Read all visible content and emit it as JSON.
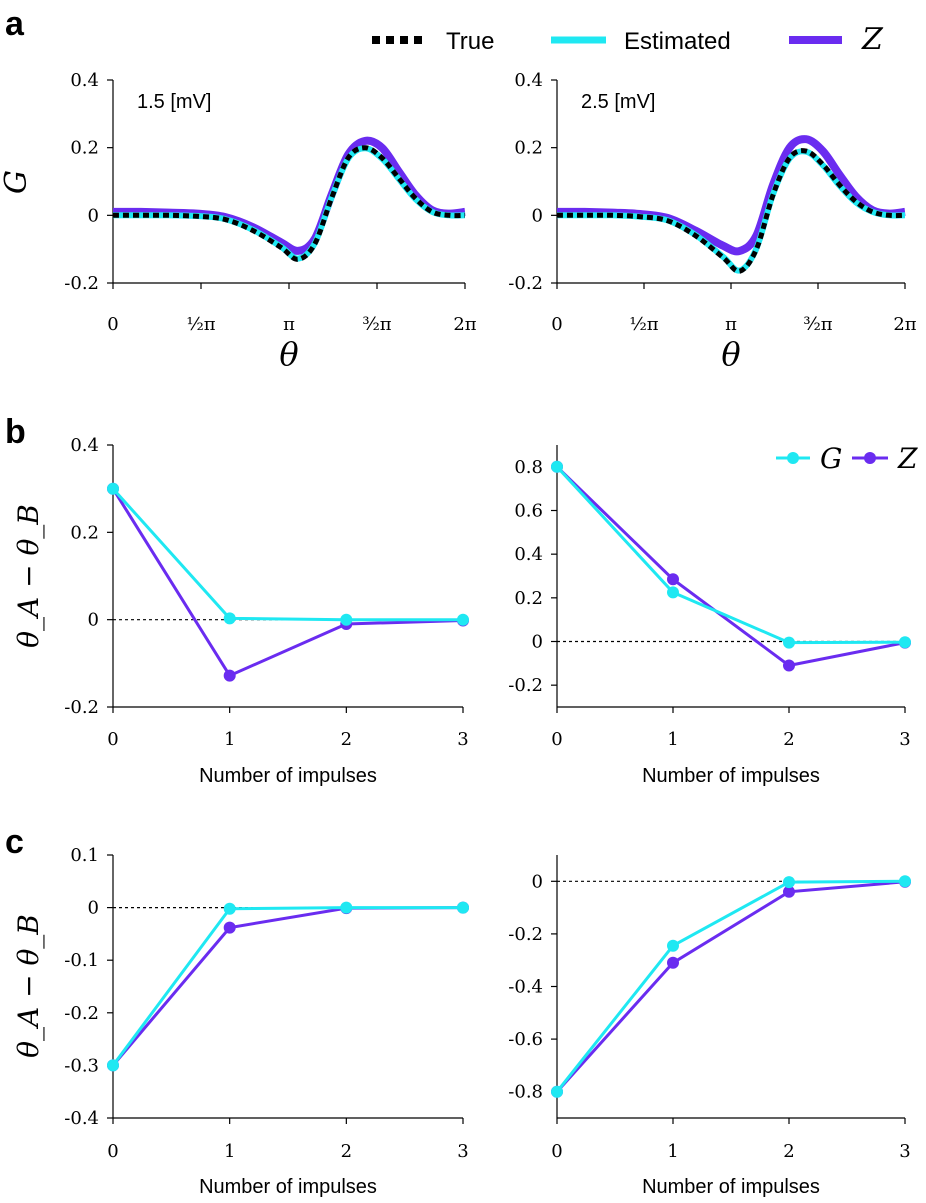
{
  "colors": {
    "true_line": "#000000",
    "g_color": "#1fe8f2",
    "z_color": "#6a2cf0",
    "axis": "#000000"
  },
  "panels": [
    {
      "label": "a"
    },
    {
      "label": "b"
    },
    {
      "label": "c"
    }
  ],
  "legend_a": [
    {
      "label": "True",
      "color": "#000000",
      "style": "dotted"
    },
    {
      "label": "Estimated",
      "color": "#1fe8f2",
      "style": "solid"
    },
    {
      "label": "Z",
      "color": "#6a2cf0",
      "style": "solid-thick"
    }
  ],
  "legend_b": [
    {
      "label": "G",
      "color": "#1fe8f2"
    },
    {
      "label": "Z",
      "color": "#6a2cf0"
    }
  ],
  "chart_data": [
    {
      "type": "line",
      "panel": "a",
      "annotation": "1.5 [mV]",
      "xlabel": "θ",
      "ylabel": "G",
      "xlim": [
        0,
        6.2832
      ],
      "ylim": [
        -0.2,
        0.4
      ],
      "yticks": [
        -0.2,
        0,
        0.2,
        0.4
      ],
      "ytick_labels": [
        "-0.2",
        "0",
        "0.2",
        "0.4"
      ],
      "xtick_values": [
        0,
        1.5708,
        3.1416,
        4.7124,
        6.2832
      ],
      "xtick_labels": [
        "0",
        "½π",
        "π",
        "³⁄₂π",
        "2π"
      ],
      "x": [
        0,
        0.5,
        1.0,
        1.5,
        2.0,
        2.5,
        3.0,
        3.3,
        3.6,
        3.9,
        4.2,
        4.5,
        4.8,
        5.1,
        5.4,
        5.7,
        6.0,
        6.2832
      ],
      "series": [
        {
          "name": "True",
          "values": [
            0,
            0,
            0,
            -0.003,
            -0.012,
            -0.045,
            -0.095,
            -0.13,
            -0.085,
            0.05,
            0.17,
            0.2,
            0.17,
            0.11,
            0.05,
            0.01,
            0,
            0
          ]
        },
        {
          "name": "Estimated",
          "values": [
            0,
            0,
            0,
            -0.002,
            -0.011,
            -0.043,
            -0.093,
            -0.128,
            -0.083,
            0.052,
            0.168,
            0.198,
            0.168,
            0.108,
            0.048,
            0.01,
            0,
            0
          ]
        },
        {
          "name": "Z",
          "values": [
            0.01,
            0.01,
            0.008,
            0.005,
            -0.005,
            -0.035,
            -0.08,
            -0.105,
            -0.07,
            0.06,
            0.18,
            0.22,
            0.2,
            0.13,
            0.06,
            0.015,
            0.005,
            0.01
          ]
        }
      ]
    },
    {
      "type": "line",
      "panel": "a",
      "annotation": "2.5 [mV]",
      "xlabel": "θ",
      "ylabel": "",
      "xlim": [
        0,
        6.2832
      ],
      "ylim": [
        -0.2,
        0.4
      ],
      "yticks": [
        -0.2,
        0,
        0.2,
        0.4
      ],
      "ytick_labels": [
        "-0.2",
        "0",
        "0.2",
        "0.4"
      ],
      "xtick_values": [
        0,
        1.5708,
        3.1416,
        4.7124,
        6.2832
      ],
      "xtick_labels": [
        "0",
        "½π",
        "π",
        "³⁄₂π",
        "2π"
      ],
      "x": [
        0,
        0.5,
        1.0,
        1.5,
        2.0,
        2.5,
        3.0,
        3.3,
        3.6,
        3.9,
        4.2,
        4.5,
        4.8,
        5.1,
        5.4,
        5.7,
        6.0,
        6.2832
      ],
      "series": [
        {
          "name": "True",
          "values": [
            0,
            0,
            0,
            -0.004,
            -0.016,
            -0.06,
            -0.125,
            -0.165,
            -0.1,
            0.06,
            0.17,
            0.19,
            0.15,
            0.09,
            0.04,
            0.01,
            0,
            0
          ]
        },
        {
          "name": "Estimated",
          "values": [
            0,
            0,
            0,
            -0.004,
            -0.015,
            -0.058,
            -0.123,
            -0.163,
            -0.098,
            0.062,
            0.168,
            0.188,
            0.148,
            0.088,
            0.038,
            0.01,
            0,
            0
          ]
        },
        {
          "name": "Z",
          "values": [
            0.01,
            0.01,
            0.008,
            0.004,
            -0.008,
            -0.045,
            -0.09,
            -0.105,
            -0.06,
            0.09,
            0.2,
            0.225,
            0.19,
            0.12,
            0.055,
            0.015,
            0.005,
            0.01
          ]
        }
      ]
    },
    {
      "type": "line",
      "panel": "b",
      "xlabel": "Number of impulses",
      "ylabel": "θ_A − θ_B",
      "ylim": [
        -0.2,
        0.4
      ],
      "yticks": [
        -0.2,
        0,
        0.2,
        0.4
      ],
      "ytick_labels": [
        "-0.2",
        "0",
        "0.2",
        "0.4"
      ],
      "x": [
        0,
        1,
        2,
        3
      ],
      "series": [
        {
          "name": "G",
          "values": [
            0.3,
            0.003,
            0.0,
            0.0
          ]
        },
        {
          "name": "Z",
          "values": [
            0.3,
            -0.128,
            -0.01,
            -0.002
          ]
        }
      ]
    },
    {
      "type": "line",
      "panel": "b",
      "xlabel": "Number of impulses",
      "ylabel": "",
      "ylim": [
        -0.3,
        0.9
      ],
      "yticks": [
        -0.2,
        0,
        0.2,
        0.4,
        0.6,
        0.8
      ],
      "ytick_labels": [
        "-0.2",
        "0",
        "0.2",
        "0.4",
        "0.6",
        "0.8"
      ],
      "x": [
        0,
        1,
        2,
        3
      ],
      "series": [
        {
          "name": "G",
          "values": [
            0.8,
            0.225,
            -0.005,
            -0.003
          ]
        },
        {
          "name": "Z",
          "values": [
            0.8,
            0.285,
            -0.11,
            -0.005
          ]
        }
      ]
    },
    {
      "type": "line",
      "panel": "c",
      "xlabel": "Number of impulses",
      "ylabel": "θ_A − θ_B",
      "ylim": [
        -0.4,
        0.1
      ],
      "yticks": [
        -0.4,
        -0.3,
        -0.2,
        -0.1,
        0,
        0.1
      ],
      "ytick_labels": [
        "-0.4",
        "-0.3",
        "-0.2",
        "-0.1",
        "0",
        "0.1"
      ],
      "x": [
        0,
        1,
        2,
        3
      ],
      "series": [
        {
          "name": "G",
          "values": [
            -0.3,
            -0.002,
            0.0,
            0.0
          ]
        },
        {
          "name": "Z",
          "values": [
            -0.3,
            -0.038,
            -0.001,
            0.0
          ]
        }
      ]
    },
    {
      "type": "line",
      "panel": "c",
      "xlabel": "Number of impulses",
      "ylabel": "",
      "ylim": [
        -0.9,
        0.1
      ],
      "yticks": [
        -0.8,
        -0.6,
        -0.4,
        -0.2,
        0
      ],
      "ytick_labels": [
        "-0.8",
        "-0.6",
        "-0.4",
        "-0.2",
        "0"
      ],
      "x": [
        0,
        1,
        2,
        3
      ],
      "series": [
        {
          "name": "G",
          "values": [
            -0.8,
            -0.245,
            -0.003,
            0.0
          ]
        },
        {
          "name": "Z",
          "values": [
            -0.8,
            -0.31,
            -0.04,
            -0.002
          ]
        }
      ]
    }
  ]
}
